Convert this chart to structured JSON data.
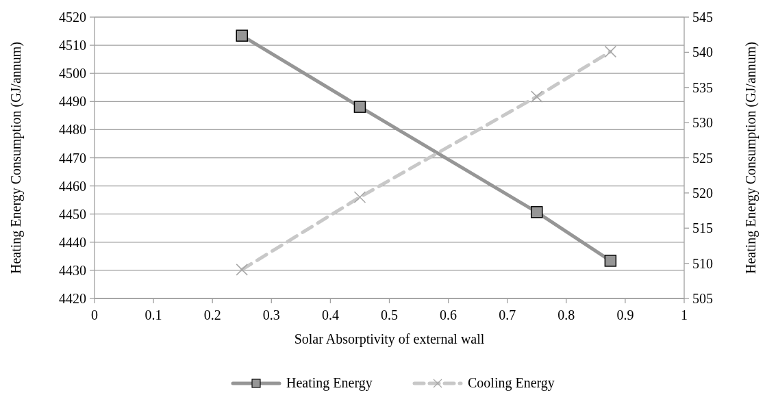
{
  "chart_data": {
    "type": "line",
    "xlabel": "Solar Absorptivity of external wall",
    "ylabel": "Heating Energy Consumption (GJ/annum)",
    "y2label": "Heating Energy Consumption (GJ/annum)",
    "x": [
      0.25,
      0.45,
      0.75,
      0.875
    ],
    "series": [
      {
        "name": "Heating Energy",
        "color": "#969696",
        "values": [
          4513.4,
          4488.1,
          4450.7,
          4433.4
        ],
        "marker": "square",
        "line_style": "solid"
      },
      {
        "name": "Cooling Energy",
        "color": "#c8c8c8",
        "values": [
          509.1,
          519.4,
          533.7,
          540.1
        ],
        "marker": "cross",
        "line_style": "dashed",
        "axis": "y2"
      }
    ],
    "xlim": [
      0,
      1
    ],
    "xticks": [
      0,
      0.1,
      0.2,
      0.3,
      0.4,
      0.5,
      0.6,
      0.7,
      0.8,
      0.9,
      1
    ],
    "ylim": [
      4420,
      4520
    ],
    "yticks": [
      4420,
      4430,
      4440,
      4450,
      4460,
      4470,
      4480,
      4490,
      4500,
      4510,
      4520
    ],
    "y2lim": [
      505,
      545
    ],
    "y2ticks": [
      505,
      510,
      515,
      520,
      525,
      530,
      535,
      540,
      545
    ],
    "grid": "y",
    "legend": "bottom"
  }
}
